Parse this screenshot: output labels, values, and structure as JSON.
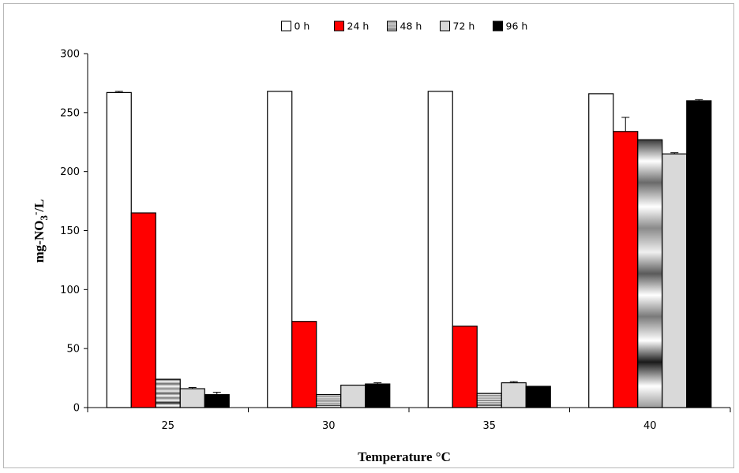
{
  "chart_data": {
    "type": "bar",
    "categories": [
      "25",
      "30",
      "35",
      "40"
    ],
    "series": [
      {
        "name": "0 h",
        "values": [
          267,
          268,
          268,
          266
        ],
        "errors": [
          1,
          0,
          0,
          0
        ],
        "color": "#ffffff",
        "pattern": "none"
      },
      {
        "name": "24 h",
        "values": [
          165,
          73,
          69,
          234
        ],
        "errors": [
          0,
          0,
          0,
          12
        ],
        "color": "#ff0000",
        "pattern": "none"
      },
      {
        "name": "48 h",
        "values": [
          24,
          11,
          12,
          227
        ],
        "errors": [
          0,
          0,
          0,
          0
        ],
        "color": "#9a9a9a",
        "pattern": "horizontal-gradient-stripes"
      },
      {
        "name": "72 h",
        "values": [
          16,
          19,
          21,
          215
        ],
        "errors": [
          1,
          0,
          1,
          1
        ],
        "color": "#d9d9d9",
        "pattern": "none"
      },
      {
        "name": "96 h",
        "values": [
          11,
          20,
          18,
          260
        ],
        "errors": [
          2,
          1,
          0,
          1
        ],
        "color": "#000000",
        "pattern": "none"
      }
    ],
    "xlabel": "Temperature °C",
    "ylabel": {
      "prefix": "mg-NO",
      "sub": "3",
      "sup": "-",
      "suffix": "/L"
    },
    "ylim": [
      0,
      300
    ],
    "yticks": [
      0,
      50,
      100,
      150,
      200,
      250,
      300
    ],
    "grid": false,
    "legend_position": "top-center"
  }
}
